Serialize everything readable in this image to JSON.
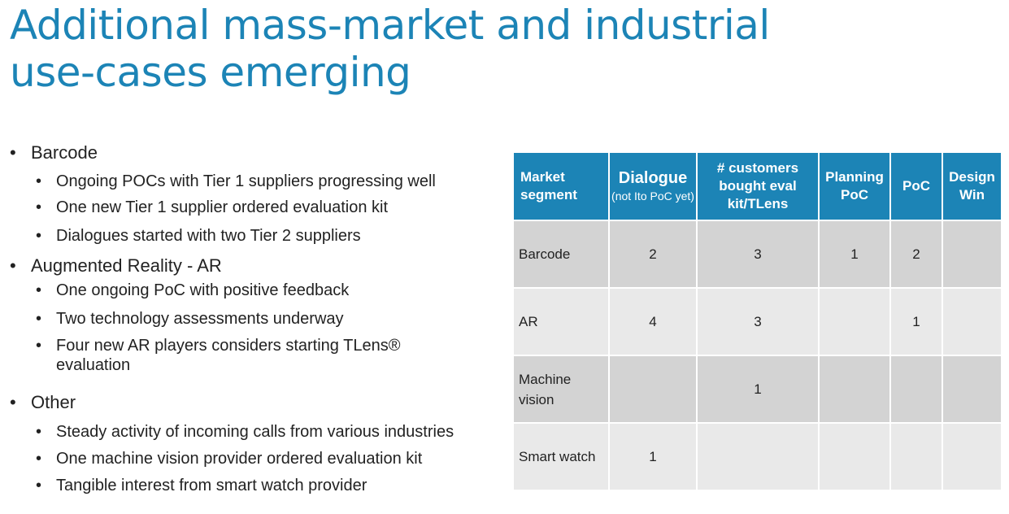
{
  "title": {
    "line1": "Additional mass-market and industrial",
    "line2": "use-cases emerging"
  },
  "bullets": [
    {
      "label": "Barcode",
      "items": [
        "Ongoing POCs with Tier 1 suppliers progressing well",
        "One new Tier 1 supplier ordered evaluation kit",
        "Dialogues started with two Tier 2 suppliers"
      ]
    },
    {
      "label": "Augmented Reality - AR",
      "items": [
        "One ongoing PoC with positive feedback",
        "Two technology assessments underway",
        "Four new AR players considers starting TLens® evaluation"
      ]
    },
    {
      "label": "Other",
      "items": [
        "Steady activity of incoming calls from various industries",
        "One machine vision provider ordered evaluation kit",
        "Tangible interest from smart watch provider"
      ]
    }
  ],
  "table": {
    "headers": {
      "segment": "Market segment",
      "dialogue": "Dialogue",
      "dialogue_sub": "(not Ito PoC yet)",
      "customers": "# customers bought eval kit/TLens",
      "planning": "Planning PoC",
      "poc": "PoC",
      "design_win": "Design Win"
    },
    "rows": [
      {
        "segment": "Barcode",
        "dialogue": "2",
        "customers": "3",
        "planning": "1",
        "poc": "2",
        "design_win": ""
      },
      {
        "segment": "AR",
        "dialogue": "4",
        "customers": "3",
        "planning": "",
        "poc": "1",
        "design_win": ""
      },
      {
        "segment": "Machine vision",
        "dialogue": "",
        "customers": "1",
        "planning": "",
        "poc": "",
        "design_win": ""
      },
      {
        "segment": "Smart watch",
        "dialogue": "1",
        "customers": "",
        "planning": "",
        "poc": "",
        "design_win": ""
      }
    ]
  },
  "colors": {
    "accent": "#1c84b6",
    "row_dark": "#d3d3d3",
    "row_light": "#e9e9e9"
  }
}
